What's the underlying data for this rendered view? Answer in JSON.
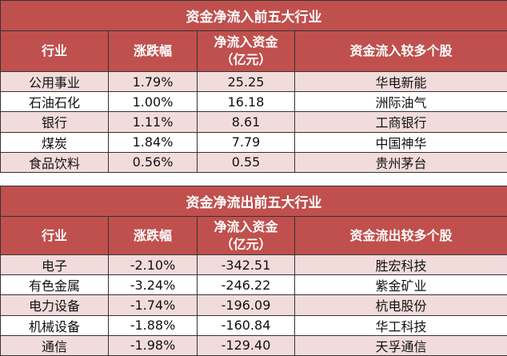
{
  "inflow": {
    "title": "资金净流入前五大行业",
    "headers": [
      "行业",
      "涨跌幅",
      "净流入资金\n（亿元）",
      "资金流入较多个股"
    ],
    "rows": [
      [
        "公用事业",
        "1.79%",
        "25.25",
        "华电新能"
      ],
      [
        "石油石化",
        "1.00%",
        "16.18",
        "洲际油气"
      ],
      [
        "银行",
        "1.11%",
        "8.61",
        "工商银行"
      ],
      [
        "煤炭",
        "1.84%",
        "7.79",
        "中国神华"
      ],
      [
        "食品饮料",
        "0.56%",
        "0.55",
        "贵州茅台"
      ]
    ]
  },
  "outflow": {
    "title": "资金净流出前五大行业",
    "headers": [
      "行业",
      "涨跌幅",
      "净流入资金\n（亿元）",
      "资金流出较多个股"
    ],
    "rows": [
      [
        "电子",
        "-2.10%",
        "-342.51",
        "胜宏科技"
      ],
      [
        "有色金属",
        "-3.24%",
        "-246.22",
        "紫金矿业"
      ],
      [
        "电力设备",
        "-1.74%",
        "-196.09",
        "杭电股份"
      ],
      [
        "机械设备",
        "-1.88%",
        "-160.84",
        "华工科技"
      ],
      [
        "通信",
        "-1.98%",
        "-129.40",
        "天孚通信"
      ]
    ]
  },
  "colors": {
    "header": "#c0504d",
    "stripe": "#f2dcdb"
  }
}
